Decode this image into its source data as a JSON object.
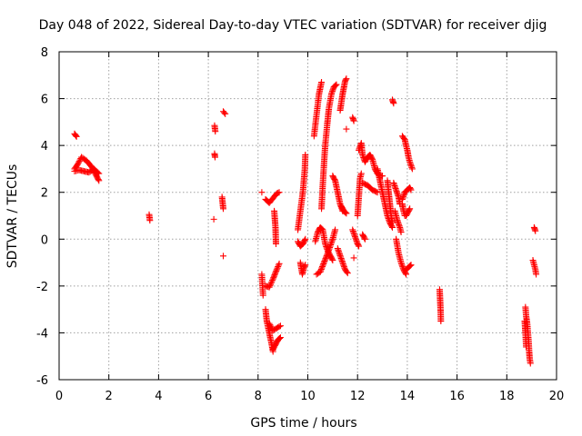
{
  "chart_data": {
    "type": "scatter",
    "title": "Day 048 of 2022, Sidereal Day-to-day VTEC variation (SDTVAR) for receiver djig",
    "xlabel": "GPS time / hours",
    "ylabel": "SDTVAR / TECUs",
    "xlim": [
      0,
      20
    ],
    "ylim": [
      -6,
      8
    ],
    "xticks": [
      0,
      2,
      4,
      6,
      8,
      10,
      12,
      14,
      16,
      18,
      20
    ],
    "yticks": [
      -6,
      -4,
      -2,
      0,
      2,
      4,
      6,
      8
    ],
    "grid": true,
    "marker": "+",
    "color": "#ff0000",
    "series": [
      {
        "name": "SDTVAR",
        "segments": [
          [
            [
              0.62,
              4.5
            ],
            [
              0.7,
              4.38
            ]
          ],
          [
            [
              0.62,
              3.0
            ],
            [
              0.75,
              3.2
            ],
            [
              0.9,
              3.5
            ],
            [
              1.1,
              3.35
            ],
            [
              1.3,
              3.1
            ],
            [
              1.5,
              2.7
            ],
            [
              1.6,
              2.5
            ]
          ],
          [
            [
              0.62,
              2.9
            ],
            [
              0.8,
              2.95
            ],
            [
              1.0,
              2.9
            ],
            [
              1.2,
              2.85
            ],
            [
              1.4,
              3.0
            ],
            [
              1.6,
              2.8
            ]
          ],
          [
            [
              3.62,
              1.05
            ],
            [
              3.65,
              0.8
            ]
          ],
          [
            [
              6.25,
              4.85
            ],
            [
              6.28,
              4.6
            ]
          ],
          [
            [
              6.25,
              3.65
            ],
            [
              6.27,
              3.5
            ]
          ],
          [
            [
              6.22,
              0.85
            ]
          ],
          [
            [
              6.6,
              5.45
            ],
            [
              6.68,
              5.35
            ]
          ],
          [
            [
              6.55,
              1.8
            ],
            [
              6.6,
              1.3
            ]
          ],
          [
            [
              6.6,
              -0.72
            ]
          ],
          [
            [
              8.15,
              2.0
            ]
          ],
          [
            [
              8.15,
              -1.5
            ],
            [
              8.2,
              -2.4
            ]
          ],
          [
            [
              8.3,
              -2.0
            ],
            [
              8.45,
              -2.05
            ],
            [
              8.6,
              -1.7
            ],
            [
              8.75,
              -1.3
            ],
            [
              8.85,
              -1.05
            ]
          ],
          [
            [
              8.3,
              1.7
            ],
            [
              8.45,
              1.55
            ],
            [
              8.6,
              1.75
            ],
            [
              8.75,
              1.95
            ],
            [
              8.85,
              2.0
            ]
          ],
          [
            [
              8.65,
              1.2
            ],
            [
              8.7,
              0.5
            ],
            [
              8.72,
              -0.2
            ]
          ],
          [
            [
              8.3,
              -3.0
            ],
            [
              8.35,
              -3.5
            ],
            [
              8.45,
              -4.0
            ],
            [
              8.55,
              -4.5
            ],
            [
              8.6,
              -4.8
            ]
          ],
          [
            [
              8.45,
              -3.6
            ],
            [
              8.6,
              -3.9
            ],
            [
              8.75,
              -3.8
            ],
            [
              8.9,
              -3.7
            ]
          ],
          [
            [
              8.6,
              -4.7
            ],
            [
              8.7,
              -4.5
            ],
            [
              8.8,
              -4.3
            ],
            [
              8.9,
              -4.2
            ]
          ],
          [
            [
              9.6,
              0.4
            ],
            [
              9.7,
              1.2
            ],
            [
              9.8,
              2.0
            ],
            [
              9.88,
              3.0
            ],
            [
              9.9,
              3.6
            ]
          ],
          [
            [
              9.6,
              -0.1
            ],
            [
              9.7,
              -0.3
            ],
            [
              9.8,
              -0.2
            ],
            [
              9.9,
              0.0
            ]
          ],
          [
            [
              9.7,
              -1.0
            ],
            [
              9.78,
              -1.5
            ],
            [
              9.85,
              -1.2
            ],
            [
              9.9,
              -1.1
            ]
          ],
          [
            [
              10.25,
              4.4
            ],
            [
              10.35,
              5.3
            ],
            [
              10.45,
              6.2
            ],
            [
              10.55,
              6.7
            ]
          ],
          [
            [
              10.3,
              -0.1
            ],
            [
              10.4,
              0.3
            ],
            [
              10.5,
              0.5
            ],
            [
              10.6,
              0.4
            ],
            [
              10.7,
              -0.2
            ],
            [
              10.8,
              -0.5
            ],
            [
              10.9,
              -0.7
            ],
            [
              11.0,
              -0.9
            ]
          ],
          [
            [
              10.35,
              -1.5
            ],
            [
              10.5,
              -1.4
            ],
            [
              10.65,
              -1.0
            ],
            [
              10.8,
              -0.6
            ],
            [
              10.9,
              -0.3
            ],
            [
              11.0,
              0.0
            ],
            [
              11.1,
              0.4
            ]
          ],
          [
            [
              10.55,
              1.3
            ],
            [
              10.6,
              2.3
            ],
            [
              10.65,
              3.2
            ],
            [
              10.7,
              4.0
            ],
            [
              10.78,
              4.9
            ],
            [
              10.85,
              5.6
            ],
            [
              10.95,
              6.2
            ],
            [
              11.05,
              6.5
            ],
            [
              11.15,
              6.6
            ]
          ],
          [
            [
              11.0,
              2.7
            ],
            [
              11.1,
              2.5
            ],
            [
              11.2,
              2.0
            ],
            [
              11.3,
              1.5
            ],
            [
              11.4,
              1.2
            ]
          ],
          [
            [
              11.3,
              5.5
            ],
            [
              11.4,
              6.2
            ],
            [
              11.5,
              6.75
            ],
            [
              11.55,
              6.85
            ]
          ],
          [
            [
              11.2,
              -0.4
            ],
            [
              11.3,
              -0.7
            ],
            [
              11.4,
              -1.0
            ],
            [
              11.5,
              -1.3
            ],
            [
              11.6,
              -1.45
            ]
          ],
          [
            [
              11.35,
              1.4
            ],
            [
              11.45,
              1.2
            ],
            [
              11.55,
              1.1
            ]
          ],
          [
            [
              11.55,
              4.7
            ]
          ],
          [
            [
              11.8,
              5.2
            ],
            [
              11.85,
              5.05
            ]
          ],
          [
            [
              11.8,
              0.4
            ],
            [
              11.9,
              0.1
            ],
            [
              12.0,
              -0.2
            ],
            [
              12.05,
              -0.3
            ]
          ],
          [
            [
              11.85,
              -0.8
            ]
          ],
          [
            [
              12.0,
              1.0
            ],
            [
              12.05,
              1.8
            ],
            [
              12.1,
              2.6
            ],
            [
              12.15,
              2.8
            ]
          ],
          [
            [
              12.05,
              3.8
            ],
            [
              12.15,
              4.1
            ],
            [
              12.2,
              3.6
            ],
            [
              12.3,
              3.3
            ],
            [
              12.4,
              3.5
            ],
            [
              12.5,
              3.6
            ],
            [
              12.6,
              3.4
            ],
            [
              12.7,
              3.0
            ],
            [
              12.8,
              2.8
            ],
            [
              12.9,
              2.7
            ],
            [
              13.0,
              2.7
            ]
          ],
          [
            [
              12.2,
              2.4
            ],
            [
              12.4,
              2.3
            ],
            [
              12.6,
              2.1
            ],
            [
              12.8,
              2.0
            ]
          ],
          [
            [
              12.2,
              0.2
            ],
            [
              12.3,
              0.0
            ]
          ],
          [
            [
              12.8,
              3.0
            ],
            [
              12.9,
              2.5
            ],
            [
              13.0,
              2.0
            ],
            [
              13.1,
              1.5
            ],
            [
              13.2,
              1.0
            ],
            [
              13.3,
              0.7
            ],
            [
              13.4,
              0.5
            ]
          ],
          [
            [
              13.2,
              2.5
            ],
            [
              13.25,
              2.0
            ],
            [
              13.3,
              1.5
            ],
            [
              13.35,
              1.0
            ],
            [
              13.4,
              0.7
            ]
          ],
          [
            [
              13.4,
              5.95
            ],
            [
              13.45,
              5.8
            ]
          ],
          [
            [
              13.45,
              2.4
            ],
            [
              13.55,
              2.1
            ],
            [
              13.65,
              1.8
            ],
            [
              13.7,
              1.5
            ]
          ],
          [
            [
              13.5,
              1.2
            ],
            [
              13.6,
              0.8
            ],
            [
              13.7,
              0.5
            ],
            [
              13.75,
              0.3
            ]
          ],
          [
            [
              13.55,
              0.0
            ],
            [
              13.65,
              -0.6
            ],
            [
              13.75,
              -1.0
            ],
            [
              13.85,
              -1.3
            ],
            [
              13.95,
              -1.5
            ]
          ],
          [
            [
              13.8,
              4.4
            ],
            [
              13.9,
              4.25
            ],
            [
              13.95,
              4.0
            ],
            [
              14.0,
              3.8
            ],
            [
              14.05,
              3.5
            ],
            [
              14.1,
              3.3
            ],
            [
              14.2,
              3.0
            ]
          ],
          [
            [
              13.8,
              1.5
            ],
            [
              13.85,
              1.2
            ],
            [
              13.9,
              1.0
            ]
          ],
          [
            [
              13.8,
              1.7
            ],
            [
              13.9,
              2.0
            ],
            [
              14.0,
              2.1
            ],
            [
              14.1,
              2.2
            ],
            [
              14.15,
              2.1
            ]
          ],
          [
            [
              13.95,
              1.0
            ],
            [
              14.05,
              1.2
            ],
            [
              14.1,
              1.3
            ]
          ],
          [
            [
              13.95,
              -1.3
            ],
            [
              14.05,
              -1.2
            ],
            [
              14.15,
              -1.1
            ]
          ],
          [
            [
              15.3,
              -2.15
            ],
            [
              15.32,
              -2.6
            ],
            [
              15.34,
              -3.1
            ],
            [
              15.35,
              -3.5
            ]
          ],
          [
            [
              18.75,
              -2.9
            ],
            [
              18.78,
              -3.3
            ],
            [
              18.82,
              -3.6
            ],
            [
              18.85,
              -4.0
            ],
            [
              18.88,
              -4.4
            ],
            [
              18.9,
              -4.8
            ],
            [
              18.92,
              -5.1
            ],
            [
              18.95,
              -5.3
            ]
          ],
          [
            [
              18.72,
              -3.5
            ],
            [
              18.75,
              -4.0
            ],
            [
              18.78,
              -4.6
            ]
          ],
          [
            [
              19.1,
              0.5
            ],
            [
              19.15,
              0.35
            ]
          ],
          [
            [
              19.05,
              -0.9
            ],
            [
              19.1,
              -1.1
            ],
            [
              19.15,
              -1.3
            ],
            [
              19.18,
              -1.5
            ]
          ]
        ]
      }
    ]
  }
}
